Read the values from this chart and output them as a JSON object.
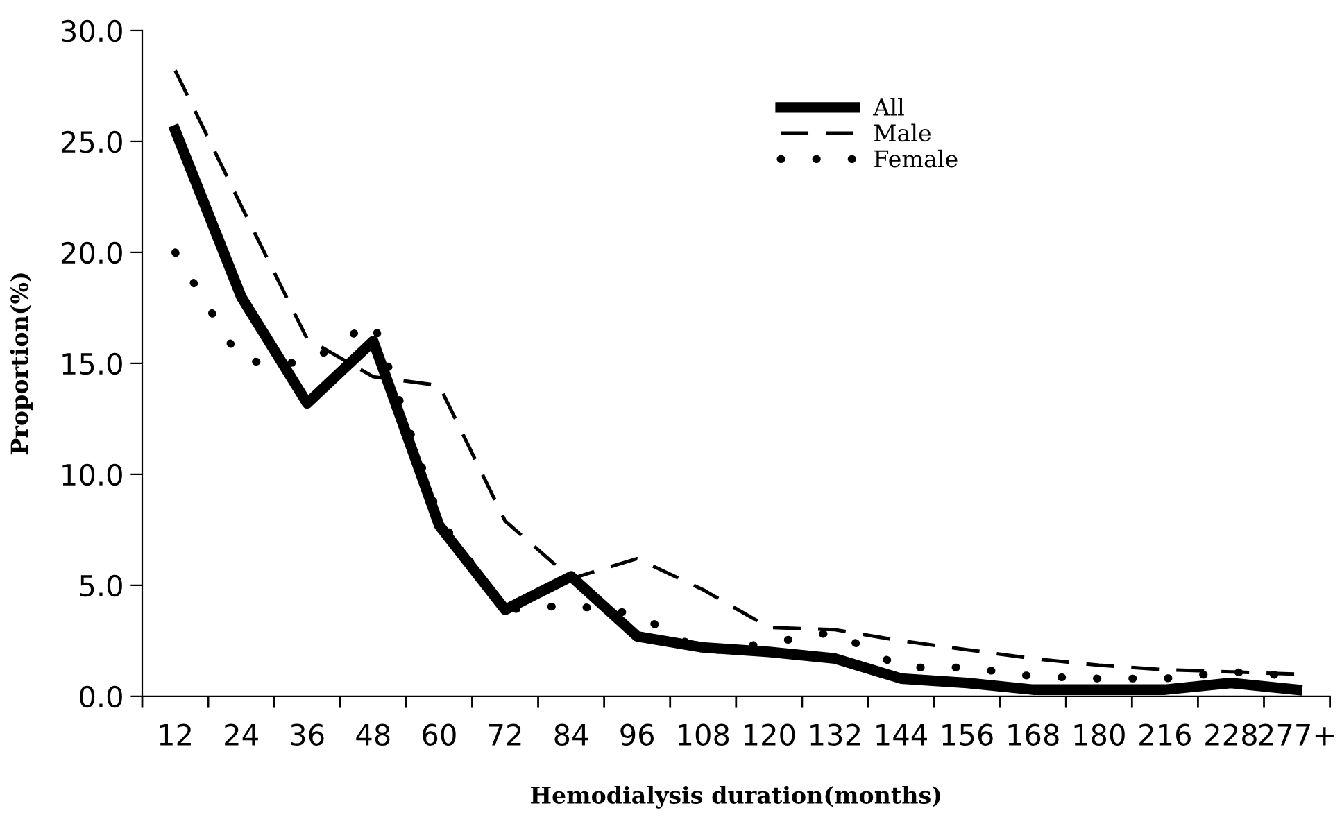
{
  "chart_data": {
    "type": "line",
    "xlabel": "Hemodialysis duration(months)",
    "ylabel": "Proportion(%)",
    "categories": [
      "12",
      "24",
      "36",
      "48",
      "60",
      "72",
      "84",
      "96",
      "108",
      "120",
      "132",
      "144",
      "156",
      "168",
      "180",
      "216",
      "228",
      "277+"
    ],
    "series": [
      {
        "name": "All",
        "color": "#000000",
        "line_style": "solid",
        "values": [
          25.5,
          18.0,
          13.2,
          16.0,
          7.7,
          3.9,
          5.4,
          2.7,
          2.2,
          2.0,
          1.7,
          0.8,
          0.6,
          0.3,
          0.3,
          0.3,
          0.6,
          0.3
        ]
      },
      {
        "name": "Male",
        "color": "#000000",
        "line_style": "dashed",
        "values": [
          28.2,
          22.1,
          16.1,
          14.4,
          14.0,
          7.9,
          5.3,
          6.2,
          4.8,
          3.1,
          3.0,
          2.5,
          2.1,
          1.7,
          1.4,
          1.2,
          1.1,
          1.0
        ]
      },
      {
        "name": "Female",
        "color": "#000000",
        "line_style": "dotted",
        "values": [
          20.0,
          15.1,
          15.0,
          16.9,
          8.0,
          3.9,
          4.1,
          3.7,
          2.0,
          2.4,
          2.9,
          1.3,
          1.3,
          0.9,
          0.8,
          0.8,
          1.1,
          0.9
        ]
      }
    ],
    "ylim": [
      0,
      30
    ],
    "yticks": [
      {
        "value": 0,
        "label": "0.0"
      },
      {
        "value": 5,
        "label": "5.0"
      },
      {
        "value": 10,
        "label": "10.0"
      },
      {
        "value": 15,
        "label": "15.0"
      },
      {
        "value": 20,
        "label": "20.0"
      },
      {
        "value": 25,
        "label": "25.0"
      },
      {
        "value": 30,
        "label": "30.0"
      }
    ],
    "grid": false,
    "legend": "top right",
    "marker": "none"
  }
}
